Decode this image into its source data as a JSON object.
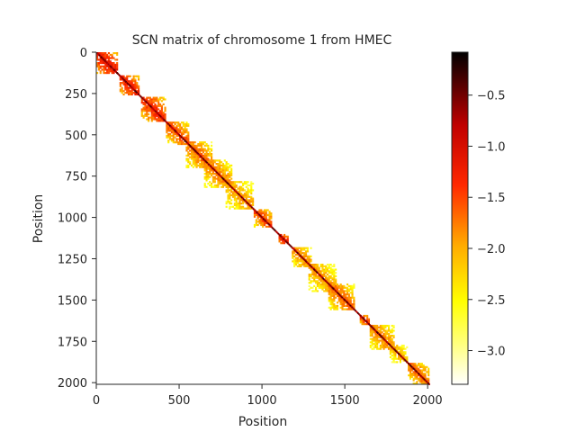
{
  "chart_data": {
    "type": "heatmap",
    "title": "SCN matrix of chromosome 1 from HMEC",
    "xlabel": "Position",
    "ylabel": "Position",
    "xlim": [
      0,
      2010
    ],
    "ylim": [
      2010,
      0
    ],
    "x_ticks": [
      0,
      500,
      1000,
      1500,
      2000
    ],
    "x_tick_labels": [
      "0",
      "500",
      "1000",
      "1500",
      "2000"
    ],
    "y_ticks": [
      0,
      250,
      500,
      750,
      1000,
      1250,
      1500,
      1750,
      2000
    ],
    "y_tick_labels": [
      "0",
      "250",
      "500",
      "750",
      "1000",
      "1250",
      "1500",
      "1750",
      "2000"
    ],
    "colormap": "hot_r",
    "colorbar": {
      "range": [
        -3.33,
        -0.08
      ],
      "ticks": [
        -0.5,
        -1.0,
        -1.5,
        -2.0,
        -2.5,
        -3.0
      ],
      "tick_labels": [
        "−0.5",
        "−1.0",
        "−1.5",
        "−2.0",
        "−2.5",
        "−3.0"
      ]
    },
    "diagonal_value": -0.3,
    "domains": [
      {
        "start": 0,
        "end": 130,
        "value": -2.0
      },
      {
        "start": 140,
        "end": 260,
        "value": -2.1
      },
      {
        "start": 270,
        "end": 420,
        "value": -2.2
      },
      {
        "start": 420,
        "end": 560,
        "value": -2.4
      },
      {
        "start": 540,
        "end": 700,
        "value": -2.5
      },
      {
        "start": 650,
        "end": 820,
        "value": -2.6
      },
      {
        "start": 780,
        "end": 950,
        "value": -2.7
      },
      {
        "start": 950,
        "end": 1060,
        "value": -2.3
      },
      {
        "start": 1100,
        "end": 1160,
        "value": -2.0
      },
      {
        "start": 1180,
        "end": 1300,
        "value": -2.6
      },
      {
        "start": 1280,
        "end": 1450,
        "value": -2.7
      },
      {
        "start": 1400,
        "end": 1560,
        "value": -2.5
      },
      {
        "start": 1590,
        "end": 1650,
        "value": -2.2
      },
      {
        "start": 1650,
        "end": 1800,
        "value": -2.6
      },
      {
        "start": 1770,
        "end": 1880,
        "value": -2.8
      },
      {
        "start": 1880,
        "end": 2010,
        "value": -2.5
      }
    ]
  },
  "colors": {
    "axis": "#262626",
    "background": "#ffffff"
  }
}
